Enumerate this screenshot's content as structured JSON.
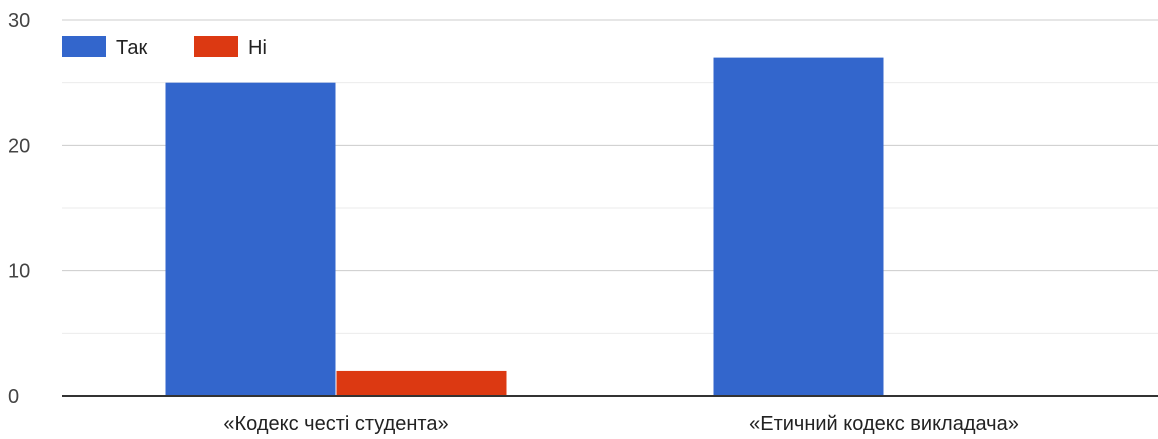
{
  "chart_data": {
    "type": "bar",
    "title": "",
    "xlabel": "",
    "ylabel": "",
    "categories": [
      "«Кодекс честі студента»",
      "«Етичний кодекс викладача»"
    ],
    "series": [
      {
        "name": "Так",
        "color": "#3366cc",
        "values": [
          25,
          27
        ]
      },
      {
        "name": "Ні",
        "color": "#dc3912",
        "values": [
          2,
          0
        ]
      }
    ],
    "ylim": [
      0,
      30
    ],
    "yticks": [
      0,
      10,
      20,
      30
    ],
    "ytick_labels": [
      "0",
      "10",
      "20",
      "30"
    ],
    "minor_gridlines": [
      5,
      15,
      25
    ],
    "grid": true,
    "legend_position": "top-left"
  }
}
